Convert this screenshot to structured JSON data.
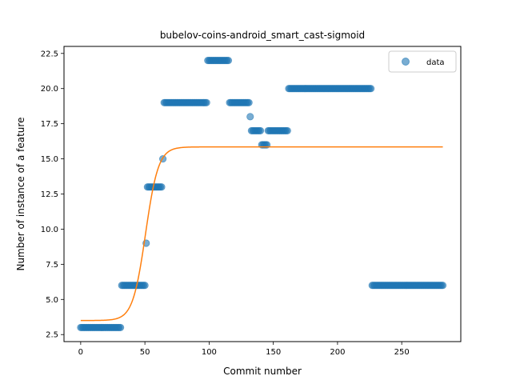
{
  "chart_data": {
    "type": "scatter",
    "title": "bubelov-coins-android_smart_cast-sigmoid",
    "xlabel": "Commit number",
    "ylabel": "Number of instance of a feature",
    "xlim": [
      -13,
      296
    ],
    "ylim": [
      2.0,
      23.0
    ],
    "xticks": [
      0,
      50,
      100,
      150,
      200,
      250
    ],
    "yticks": [
      2.5,
      5.0,
      7.5,
      10.0,
      12.5,
      15.0,
      17.5,
      20.0,
      22.5
    ],
    "ytick_labels": [
      "2.5",
      "5.0",
      "7.5",
      "10.0",
      "12.5",
      "15.0",
      "17.5",
      "20.0",
      "22.5"
    ],
    "grid": false,
    "legend": {
      "position": "top-right",
      "entries": [
        "data"
      ]
    },
    "colors": {
      "data": "#1f77b4",
      "fit": "#ff7f0e"
    },
    "data_segments": [
      {
        "x_start": 0,
        "x_end": 31,
        "y": 3
      },
      {
        "x_start": 32,
        "x_end": 50,
        "y": 6
      },
      {
        "x_start": 51,
        "x_end": 51,
        "y": 9
      },
      {
        "x_start": 52,
        "x_end": 63,
        "y": 13
      },
      {
        "x_start": 64,
        "x_end": 64,
        "y": 15
      },
      {
        "x_start": 65,
        "x_end": 98,
        "y": 19
      },
      {
        "x_start": 99,
        "x_end": 115,
        "y": 22
      },
      {
        "x_start": 116,
        "x_end": 131,
        "y": 19
      },
      {
        "x_start": 132,
        "x_end": 132,
        "y": 18
      },
      {
        "x_start": 133,
        "x_end": 140,
        "y": 17
      },
      {
        "x_start": 141,
        "x_end": 145,
        "y": 16
      },
      {
        "x_start": 146,
        "x_end": 161,
        "y": 17
      },
      {
        "x_start": 162,
        "x_end": 226,
        "y": 20
      },
      {
        "x_start": 227,
        "x_end": 282,
        "y": 6
      }
    ],
    "fit_curve": {
      "name": "sigmoid fit",
      "L": 12.35,
      "x0": 50.5,
      "k": 0.2,
      "b": 3.5,
      "x_start": 0,
      "x_end": 282
    }
  }
}
